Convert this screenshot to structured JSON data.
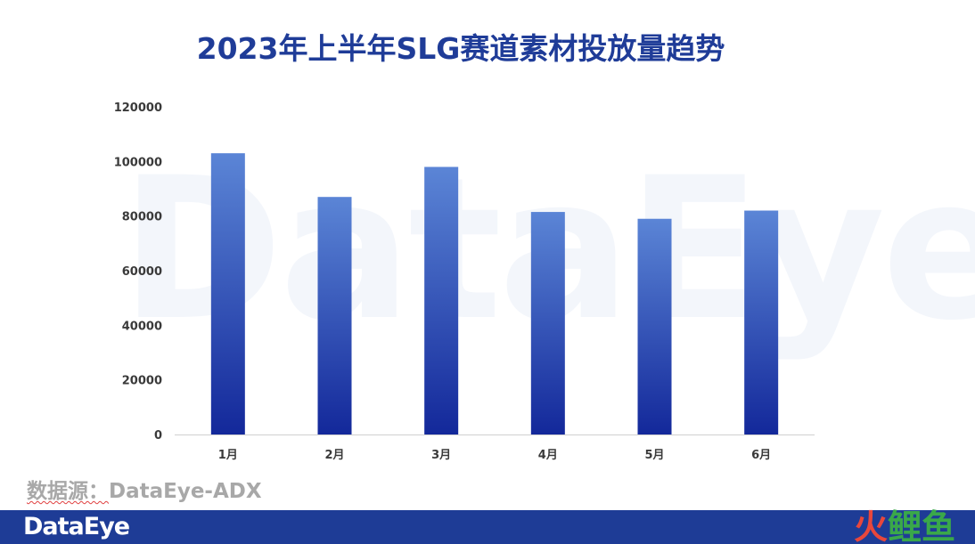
{
  "watermark": "DataEye",
  "source_prefix": "数据源：",
  "source_name": "DataEye-ADX",
  "footer_logo": "DataEye",
  "corner_logo": {
    "first": "火",
    "rest": "鲤鱼"
  },
  "colors": {
    "title": "#1f3c98",
    "bar_top": "#5b85d6",
    "bar_bottom": "#13289a",
    "footer": "#1e3c96"
  },
  "chart_data": {
    "type": "bar",
    "title": "2023年上半年SLG赛道素材投放量趋势",
    "categories": [
      "1月",
      "2月",
      "3月",
      "4月",
      "5月",
      "6月"
    ],
    "values": [
      103000,
      87000,
      98000,
      81500,
      79000,
      82000
    ],
    "ylim": [
      0,
      120000
    ],
    "yticks": [
      "0",
      "20000",
      "40000",
      "60000",
      "80000",
      "100000",
      "120000"
    ],
    "xlabel": "",
    "ylabel": "",
    "grid": false,
    "legend": "none"
  }
}
